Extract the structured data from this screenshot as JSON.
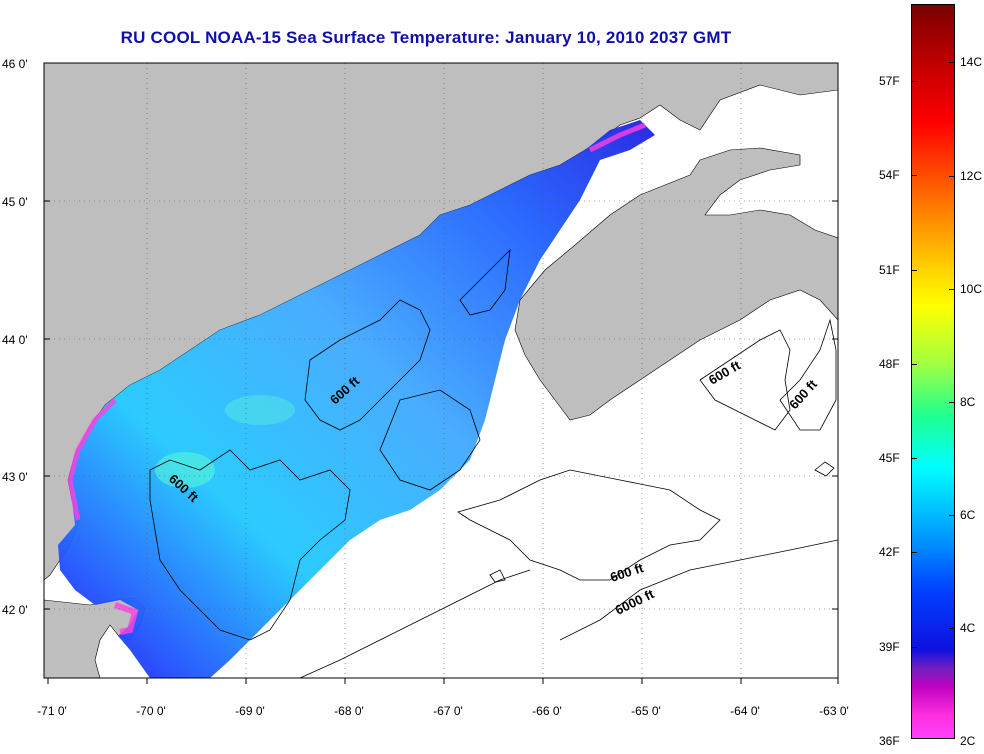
{
  "title": "RU COOL  NOAA-15  Sea Surface Temperature:  January 10, 2010 2037 GMT",
  "lat_labels": [
    "46 0'",
    "45 0'",
    "44 0'",
    "43 0'",
    "42 0'"
  ],
  "lon_labels": [
    "-71 0'",
    "-70 0'",
    "-69 0'",
    "-68 0'",
    "-67 0'",
    "-66 0'",
    "-65 0'",
    "-64 0'",
    "-63 0'"
  ],
  "contour_labels": [
    "600 ft",
    "600 ft",
    "600 ft",
    "600 ft",
    "600 ft",
    "6000 ft"
  ],
  "colorbar": {
    "fahrenheit": [
      "57F",
      "54F",
      "51F",
      "48F",
      "45F",
      "42F",
      "39F",
      "36F"
    ],
    "celsius": [
      "14C",
      "12C",
      "10C",
      "8C",
      "6C",
      "4C",
      "2C"
    ]
  },
  "colors": {
    "land": "#bebebe",
    "title": "#1010a8",
    "ocean_nodata": "#ffffff"
  }
}
